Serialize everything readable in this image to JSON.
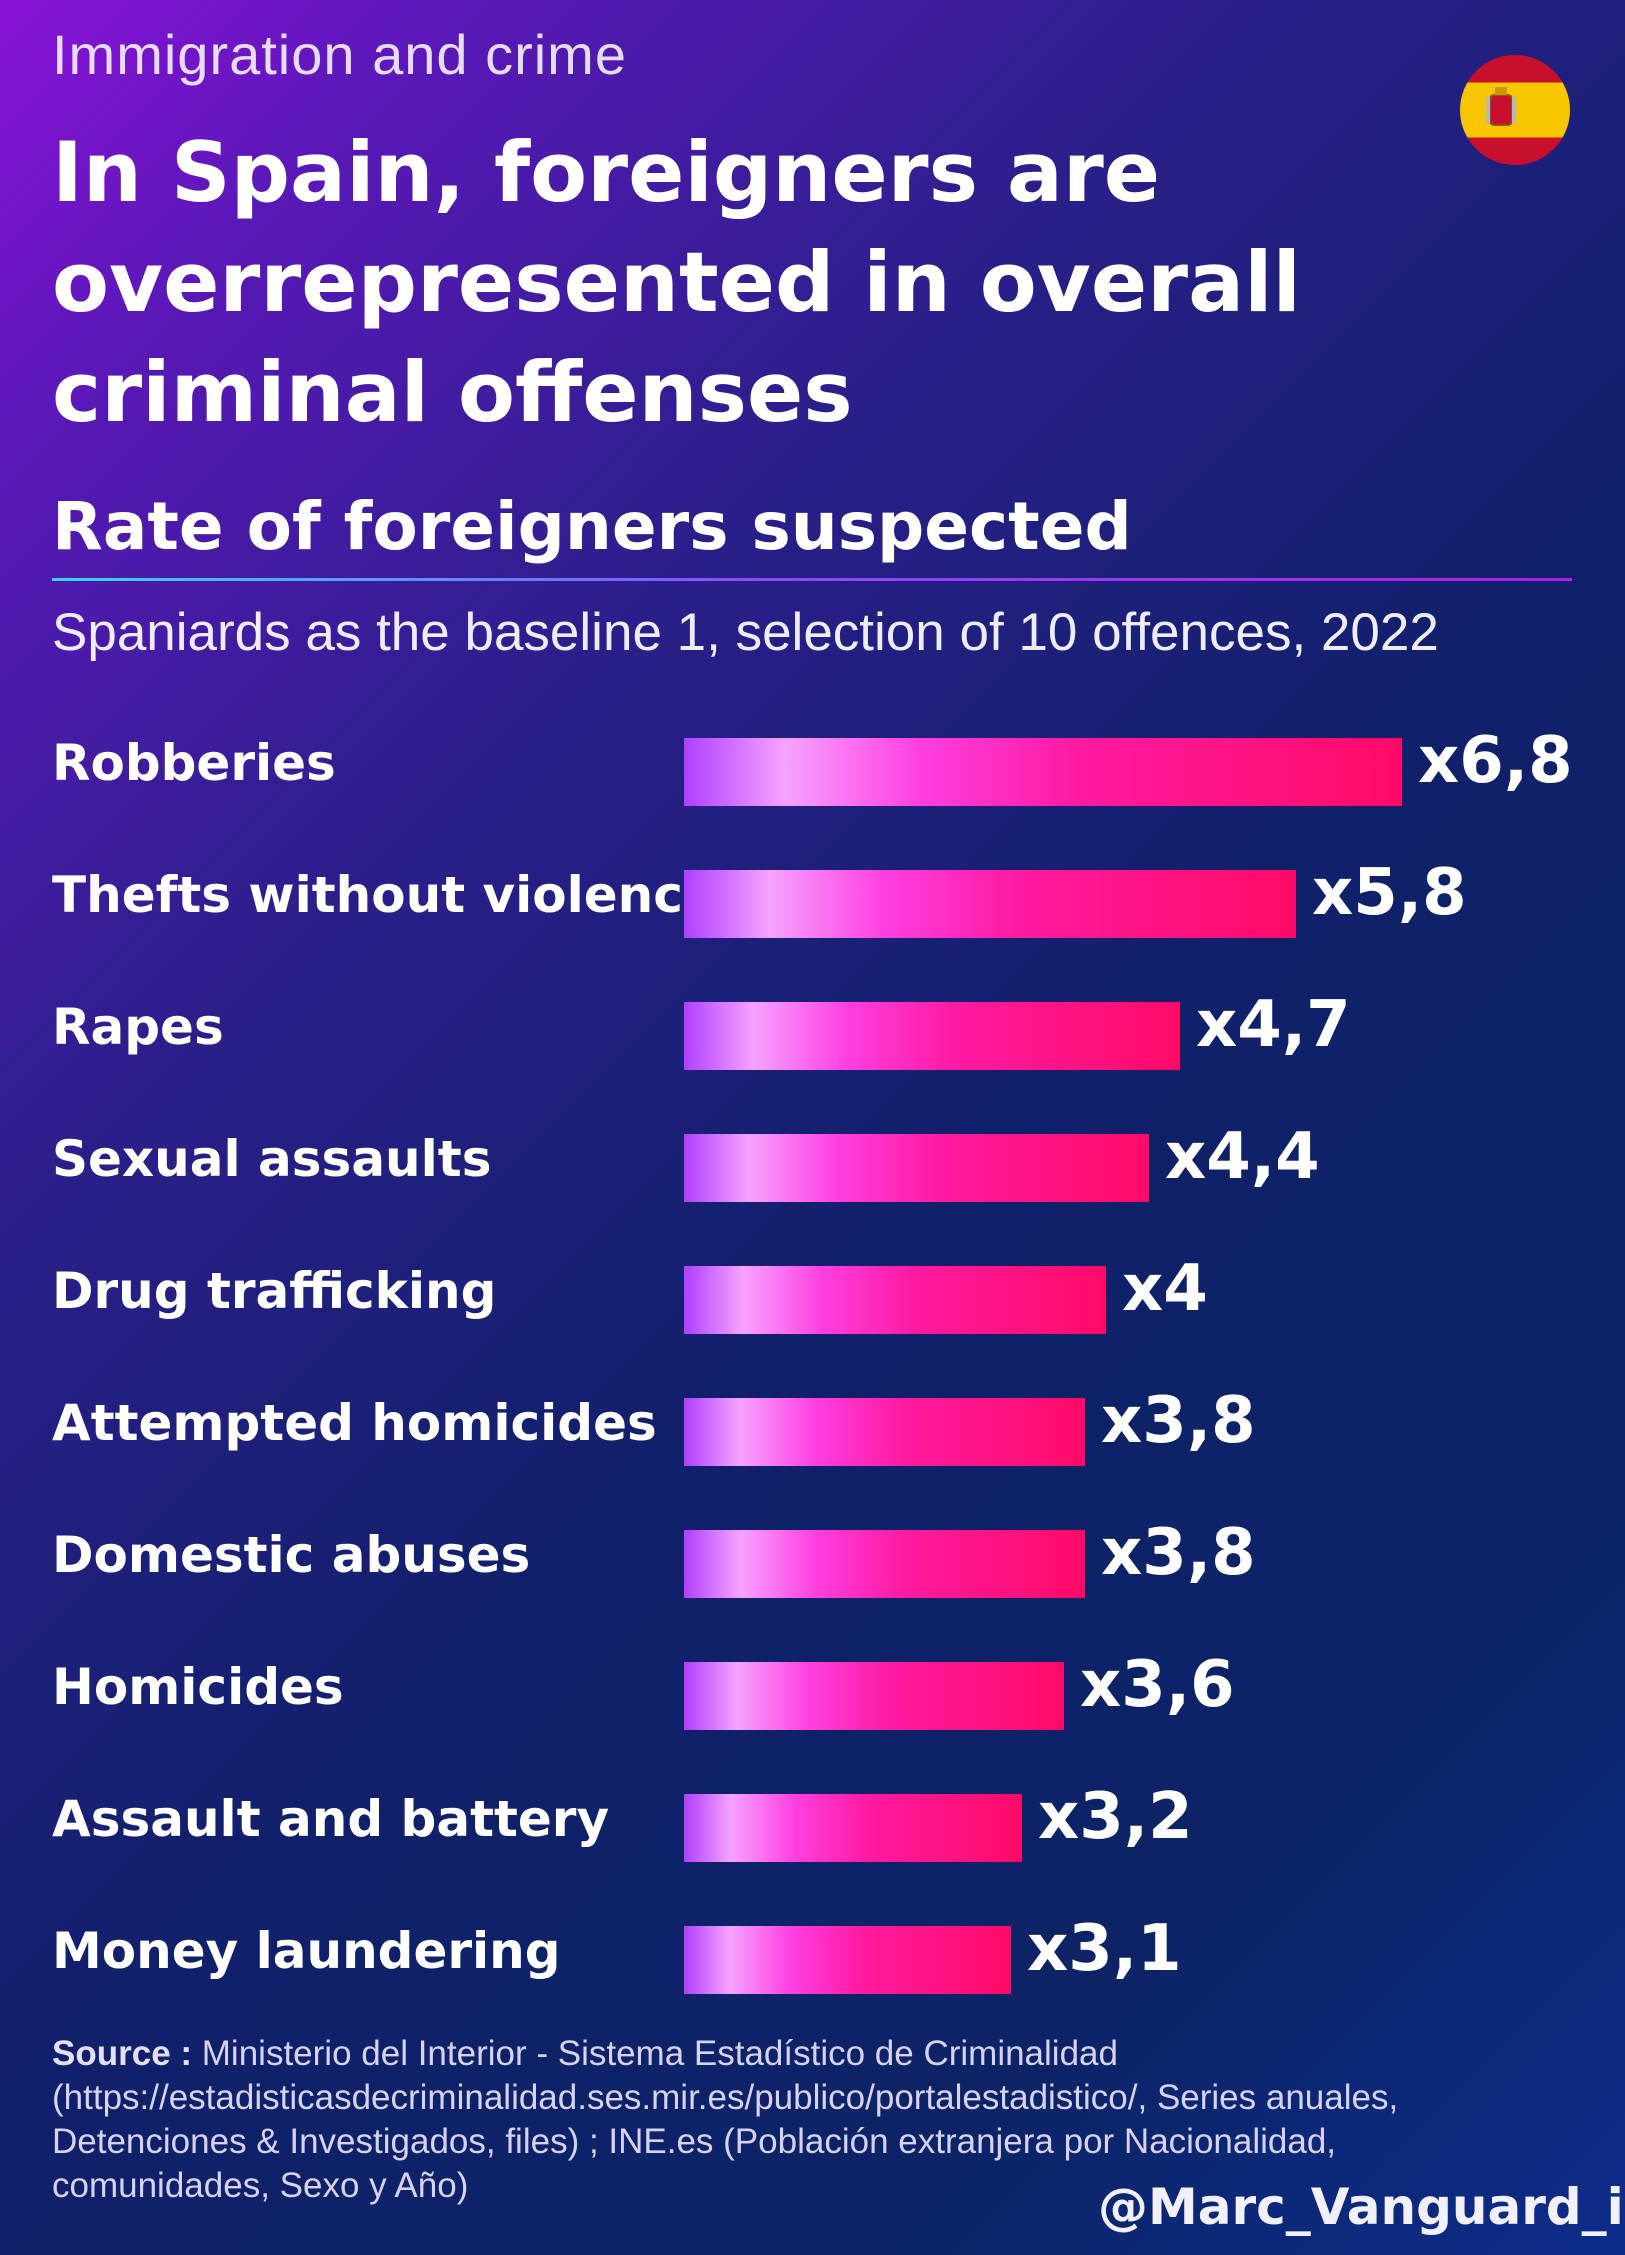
{
  "kicker": "Immigration and crime",
  "title": "In Spain, foreigners are overrepresented in overall criminal offenses",
  "icons": {
    "flag": "spain-flag-icon"
  },
  "chart_data": {
    "type": "bar",
    "orientation": "horizontal",
    "title": "Rate of foreigners suspected",
    "subtitle": "Spaniards as the baseline 1, selection of 10 offences, 2022",
    "categories": [
      "Robberies",
      "Thefts without violence",
      "Rapes",
      "Sexual assaults",
      "Drug trafficking",
      "Attempted homicides",
      "Domestic abuses",
      "Homicides",
      "Assault and battery",
      "Money laundering"
    ],
    "values": [
      6.8,
      5.8,
      4.7,
      4.4,
      4.0,
      3.8,
      3.8,
      3.6,
      3.2,
      3.1
    ],
    "value_labels": [
      "x6,8",
      "x5,8",
      "x4,7",
      "x4,4",
      "x4",
      "x3,8",
      "x3,8",
      "x3,6",
      "x3,2",
      "x3,1"
    ],
    "xlim": [
      0,
      6.8
    ],
    "grid": false,
    "colors": {
      "bar_start": "#b040ff",
      "bar_mid": "#ff3ee0",
      "bar_end": "#ff0a66"
    }
  },
  "source": {
    "label": "Source :",
    "text": "Ministerio del Interior - Sistema Estadístico de Criminalidad (https://estadisticasdecriminalidad.ses.mir.es/publico/portalestadistico/, Series anuales, Detenciones & Investigados, files) ; INE.es (Población extranjera por Nacionalidad, comunidades, Sexo y Año)"
  },
  "handle": "@Marc_Vanguard_i"
}
